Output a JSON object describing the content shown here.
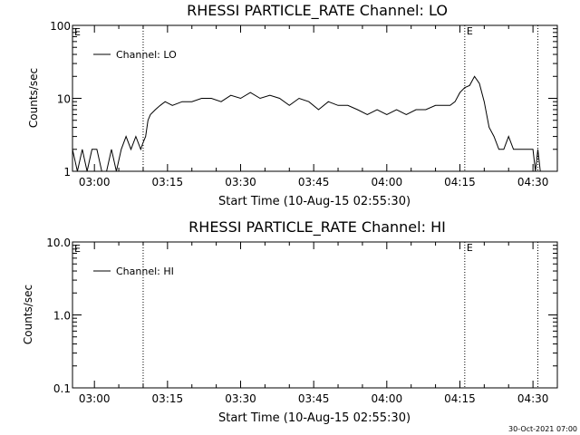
{
  "footer_timestamp": "30-Oct-2021 07:00",
  "chart_data": [
    {
      "type": "line",
      "title": "RHESSI PARTICLE_RATE Channel: LO",
      "xlabel": "Start Time (10-Aug-15 02:55:30)",
      "ylabel": "Counts/sec",
      "yscale": "log",
      "ylim": [
        1,
        100
      ],
      "xlim": [
        "02:55:30",
        "04:35:00"
      ],
      "x_ticks": [
        "03:00",
        "03:15",
        "03:30",
        "03:45",
        "04:00",
        "04:15",
        "04:30"
      ],
      "y_ticks": [
        "1",
        "10",
        "100"
      ],
      "legend": "top-left",
      "markers": [
        {
          "time": "03:10:00",
          "label": ""
        },
        {
          "time": "04:16:00",
          "label": "E"
        },
        {
          "time": "04:31:00",
          "label": ""
        }
      ],
      "corner_label": "E",
      "series": [
        {
          "name": "Channel: LO",
          "x": [
            "02:55:30",
            "02:56:30",
            "02:57:30",
            "02:58:30",
            "02:59:30",
            "03:00:30",
            "03:01:30",
            "03:02:30",
            "03:03:30",
            "03:04:30",
            "03:05:30",
            "03:06:30",
            "03:07:30",
            "03:08:30",
            "03:09:30",
            "03:10:00",
            "03:10:30",
            "03:11:00",
            "03:11:30",
            "03:12:30",
            "03:13:30",
            "03:14:30",
            "03:16:00",
            "03:18:00",
            "03:20:00",
            "03:22:00",
            "03:24:00",
            "03:26:00",
            "03:28:00",
            "03:30:00",
            "03:32:00",
            "03:34:00",
            "03:36:00",
            "03:38:00",
            "03:40:00",
            "03:42:00",
            "03:44:00",
            "03:46:00",
            "03:48:00",
            "03:50:00",
            "03:52:00",
            "03:54:00",
            "03:56:00",
            "03:58:00",
            "04:00:00",
            "04:02:00",
            "04:04:00",
            "04:06:00",
            "04:08:00",
            "04:10:00",
            "04:12:00",
            "04:13:00",
            "04:14:00",
            "04:15:00",
            "04:16:00",
            "04:17:00",
            "04:18:00",
            "04:19:00",
            "04:20:00",
            "04:21:00",
            "04:22:00",
            "04:23:00",
            "04:24:00",
            "04:25:00",
            "04:26:00",
            "04:27:00",
            "04:28:00",
            "04:29:00",
            "04:30:00",
            "04:30:30",
            "04:31:00",
            "04:31:30"
          ],
          "values": [
            2,
            1,
            2,
            1,
            2,
            2,
            1,
            1,
            2,
            1,
            2,
            3,
            2,
            3,
            2,
            2.5,
            3,
            5,
            6,
            7,
            8,
            9,
            8,
            9,
            9,
            10,
            10,
            9,
            11,
            10,
            12,
            10,
            11,
            10,
            8,
            10,
            9,
            7,
            9,
            8,
            8,
            7,
            6,
            7,
            6,
            7,
            6,
            7,
            7,
            8,
            8,
            8,
            9,
            12,
            14,
            15,
            20,
            16,
            9,
            4,
            3,
            2,
            2,
            3,
            2,
            2,
            2,
            2,
            2,
            1,
            2,
            1
          ]
        }
      ]
    },
    {
      "type": "line",
      "title": "RHESSI PARTICLE_RATE Channel: HI",
      "xlabel": "Start Time (10-Aug-15 02:55:30)",
      "ylabel": "Counts/sec",
      "yscale": "log",
      "ylim": [
        0.1,
        10
      ],
      "xlim": [
        "02:55:30",
        "04:35:00"
      ],
      "x_ticks": [
        "03:00",
        "03:15",
        "03:30",
        "03:45",
        "04:00",
        "04:15",
        "04:30"
      ],
      "y_ticks": [
        "0.1",
        "1.0",
        "10.0"
      ],
      "legend": "top-left",
      "markers": [
        {
          "time": "03:10:00",
          "label": ""
        },
        {
          "time": "04:16:00",
          "label": "E"
        },
        {
          "time": "04:31:00",
          "label": ""
        }
      ],
      "corner_label": "E",
      "series": [
        {
          "name": "Channel: HI",
          "x": [],
          "values": []
        }
      ]
    }
  ]
}
